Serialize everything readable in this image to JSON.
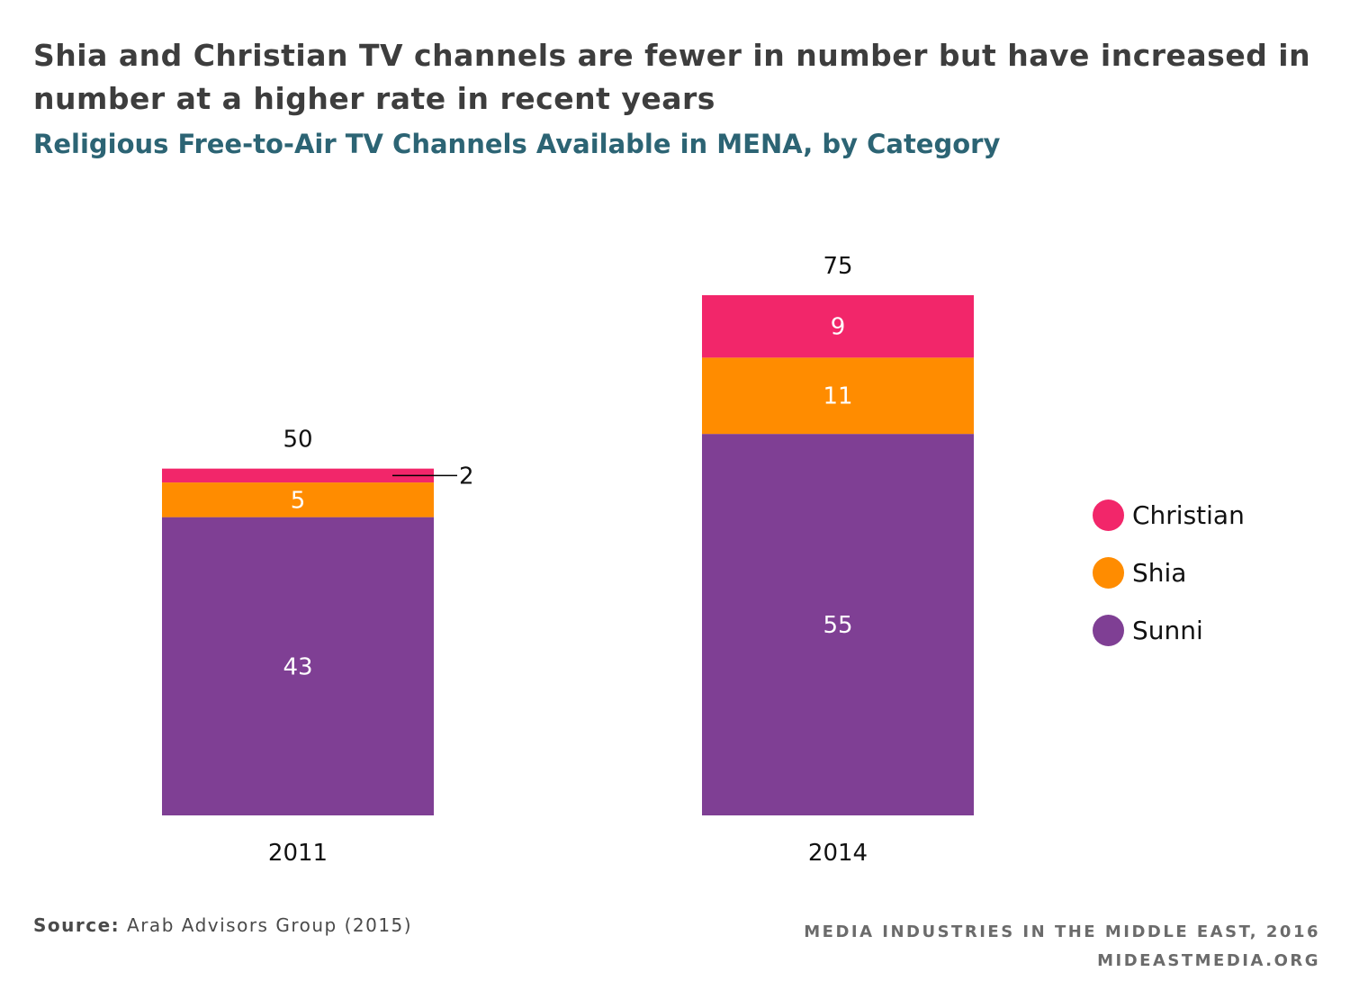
{
  "title": "Shia and Christian TV channels are fewer in number but have increased in number at a higher rate in recent years",
  "subtitle": "Religious Free-to-Air TV Channels Available in MENA, by Category",
  "source_label": "Source:",
  "source_text": "Arab Advisors Group (2015)",
  "branding_line1": "MEDIA INDUSTRIES IN THE MIDDLE EAST, 2016",
  "branding_line2": "MIDEASTMEDIA.ORG",
  "legend": [
    {
      "name": "Christian",
      "color": "#f2266a"
    },
    {
      "name": "Shia",
      "color": "#ff8c00"
    },
    {
      "name": "Sunni",
      "color": "#7f3f94"
    }
  ],
  "chart_data": {
    "type": "bar",
    "stacked": true,
    "categories": [
      "2011",
      "2014"
    ],
    "series": [
      {
        "name": "Sunni",
        "values": [
          43,
          55
        ],
        "color": "#7f3f94"
      },
      {
        "name": "Shia",
        "values": [
          5,
          11
        ],
        "color": "#ff8c00"
      },
      {
        "name": "Christian",
        "values": [
          2,
          9
        ],
        "color": "#f2266a"
      }
    ],
    "totals": [
      50,
      75
    ],
    "title": "Religious Free-to-Air TV Channels Available in MENA, by Category",
    "xlabel": "",
    "ylabel": "",
    "ylim": [
      0,
      75
    ],
    "grid": false,
    "legend_position": "right"
  }
}
